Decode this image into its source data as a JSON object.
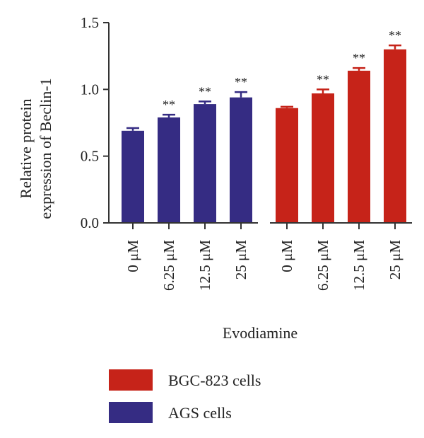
{
  "chart_data": {
    "type": "bar",
    "title": "",
    "xlabel": "Evodiamine",
    "ylabel_lines": [
      "Relative protein",
      "expression of Beclin-1"
    ],
    "ylim": [
      0,
      1.5
    ],
    "yticks": [
      "0.0",
      "0.5",
      "1.0",
      "1.5"
    ],
    "ytick_values": [
      0,
      0.5,
      1.0,
      1.5
    ],
    "categories": [
      "0 μM",
      "6.25 μM",
      "12.5 μM",
      "25 μM"
    ],
    "series": [
      {
        "name": "AGS cells",
        "color": "#352C83",
        "values": [
          0.69,
          0.79,
          0.89,
          0.94
        ],
        "errors": [
          0.02,
          0.02,
          0.02,
          0.04
        ],
        "significance": [
          "",
          "**",
          "**",
          "**"
        ]
      },
      {
        "name": "BGC-823 cells",
        "color": "#C62319",
        "values": [
          0.86,
          0.97,
          1.14,
          1.3
        ],
        "errors": [
          0.01,
          0.03,
          0.02,
          0.03
        ],
        "significance": [
          "",
          "**",
          "**",
          "**"
        ]
      }
    ],
    "legend": {
      "placement": "bottom",
      "order": [
        "BGC-823 cells",
        "AGS cells"
      ]
    }
  }
}
